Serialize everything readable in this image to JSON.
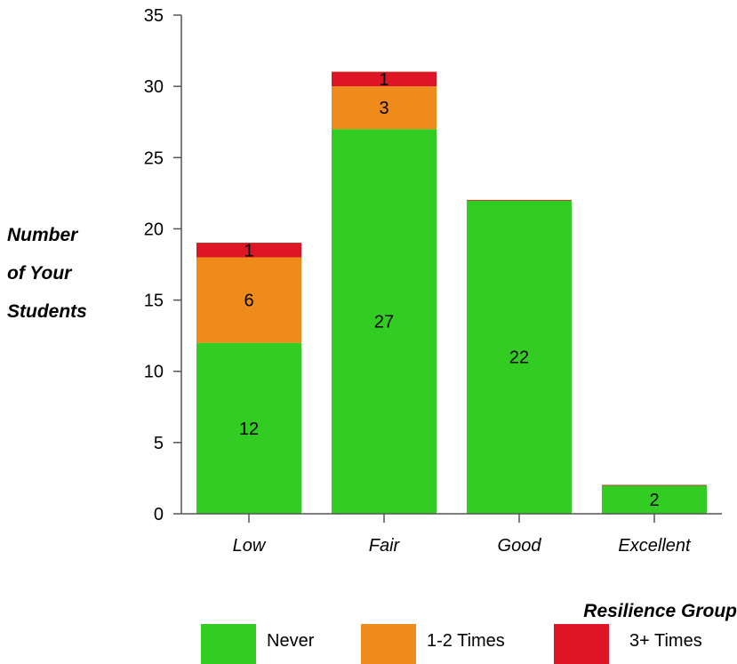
{
  "chart_data": {
    "type": "bar",
    "stacked": true,
    "categories": [
      "Low",
      "Fair",
      "Good",
      "Excellent"
    ],
    "series": [
      {
        "name": "Never",
        "values": [
          12,
          27,
          22,
          2
        ],
        "color": "#33cc22"
      },
      {
        "name": "1-2 Times",
        "values": [
          6,
          3,
          0,
          0
        ],
        "color": "#ee8b1a"
      },
      {
        "name": "3+ Times",
        "values": [
          1,
          1,
          0,
          0
        ],
        "color": "#dd1525"
      }
    ],
    "ylabel": [
      "Number",
      "of Your",
      "Students"
    ],
    "xlabel": "Resilience Group",
    "ylim": [
      0,
      35
    ],
    "yticks": [
      0,
      5,
      10,
      15,
      20,
      25,
      30,
      35
    ],
    "grid": false,
    "legend": "bottom"
  }
}
